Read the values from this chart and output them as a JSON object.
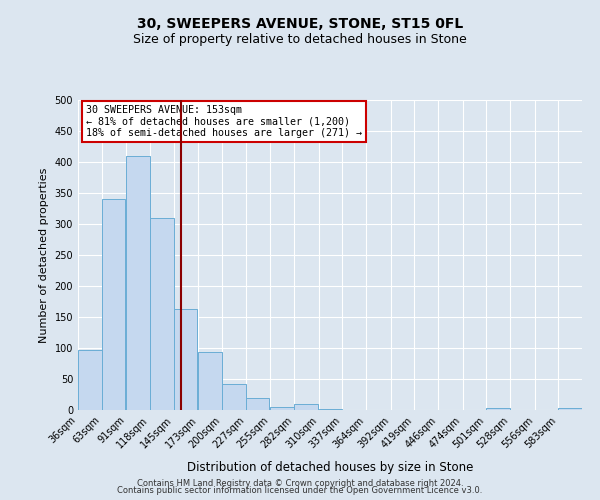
{
  "title": "30, SWEEPERS AVENUE, STONE, ST15 0FL",
  "subtitle": "Size of property relative to detached houses in Stone",
  "xlabel": "Distribution of detached houses by size in Stone",
  "ylabel": "Number of detached properties",
  "footer_line1": "Contains HM Land Registry data © Crown copyright and database right 2024.",
  "footer_line2": "Contains public sector information licensed under the Open Government Licence v3.0.",
  "bin_labels": [
    "36sqm",
    "63sqm",
    "91sqm",
    "118sqm",
    "145sqm",
    "173sqm",
    "200sqm",
    "227sqm",
    "255sqm",
    "282sqm",
    "310sqm",
    "337sqm",
    "364sqm",
    "392sqm",
    "419sqm",
    "446sqm",
    "474sqm",
    "501sqm",
    "528sqm",
    "556sqm",
    "583sqm"
  ],
  "bin_edges": [
    36,
    63,
    91,
    118,
    145,
    173,
    200,
    227,
    255,
    282,
    310,
    337,
    364,
    392,
    419,
    446,
    474,
    501,
    528,
    556,
    583
  ],
  "bar_heights": [
    97,
    340,
    410,
    310,
    163,
    93,
    42,
    19,
    5,
    10,
    2,
    0,
    0,
    0,
    0,
    0,
    0,
    4,
    0,
    0,
    3
  ],
  "bar_color": "#c5d8ef",
  "bar_edge_color": "#6aadd5",
  "bg_color": "#dce6f0",
  "plot_bg_color": "#dce6f0",
  "grid_color": "#ffffff",
  "vline_x": 153,
  "vline_color": "#8b0000",
  "annotation_title": "30 SWEEPERS AVENUE: 153sqm",
  "annotation_line1": "← 81% of detached houses are smaller (1,200)",
  "annotation_line2": "18% of semi-detached houses are larger (271) →",
  "annotation_box_facecolor": "#ffffff",
  "annotation_border_color": "#cc0000",
  "ylim": [
    0,
    500
  ],
  "yticks": [
    0,
    50,
    100,
    150,
    200,
    250,
    300,
    350,
    400,
    450,
    500
  ],
  "title_fontsize": 10,
  "subtitle_fontsize": 9,
  "ylabel_fontsize": 8,
  "xlabel_fontsize": 8.5,
  "tick_fontsize": 7,
  "footer_fontsize": 6
}
